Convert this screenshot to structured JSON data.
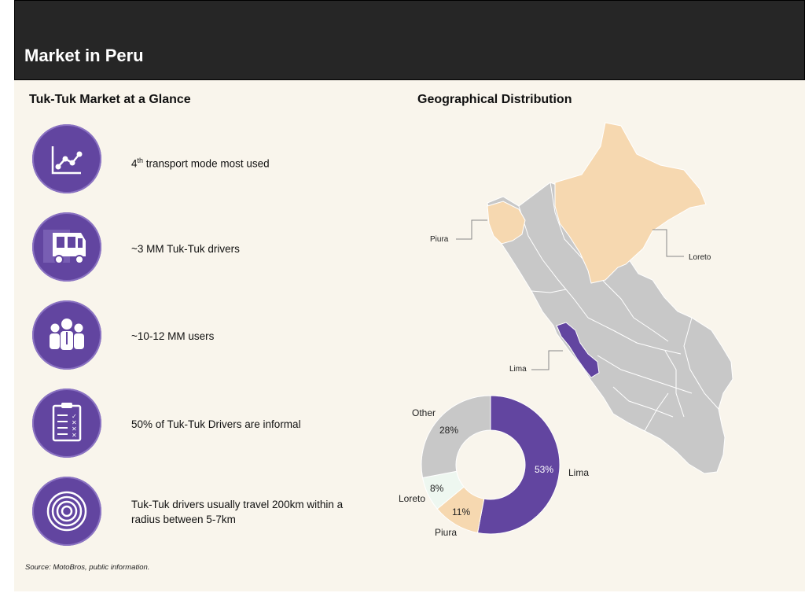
{
  "header": {
    "title": "Market in Peru"
  },
  "glance": {
    "title": "Tuk-Tuk Market at a Glance",
    "items": [
      {
        "icon": "line-chart-icon",
        "text_main": "4",
        "text_sup": "th",
        "text_rest": " transport mode most used"
      },
      {
        "icon": "tuk-tuk-icon",
        "text": "~3 MM Tuk-Tuk drivers"
      },
      {
        "icon": "users-group-icon",
        "text": "~10-12 MM users"
      },
      {
        "icon": "checklist-clipboard-icon",
        "text": "50% of Tuk-Tuk Drivers are informal"
      },
      {
        "icon": "concentric-circles-icon",
        "text_line1": "Tuk-Tuk drivers usually travel 200km within a",
        "text_line2": "radius between 5-7km"
      }
    ]
  },
  "geo": {
    "title": "Geographical Distribution",
    "map_labels": {
      "piura": "Piura",
      "loreto": "Loreto",
      "lima": "Lima"
    },
    "colors": {
      "lima": "#6245a0",
      "piura": "#f6d8b0",
      "loreto": "#f6d8b0",
      "other": "#c8c8c8",
      "other_light": "#eef7f0",
      "border": "#ffffff"
    }
  },
  "chart_data": {
    "type": "pie",
    "donut": true,
    "title": "",
    "categories": [
      "Lima",
      "Piura",
      "Loreto",
      "Other"
    ],
    "values": [
      53,
      11,
      8,
      28
    ],
    "labels": [
      "53%",
      "11%",
      "8%",
      "28%"
    ],
    "colors": [
      "#6245a0",
      "#f6d8b0",
      "#eef7f0",
      "#c8c8c8"
    ]
  },
  "source": "Source: MotoBros, public information."
}
